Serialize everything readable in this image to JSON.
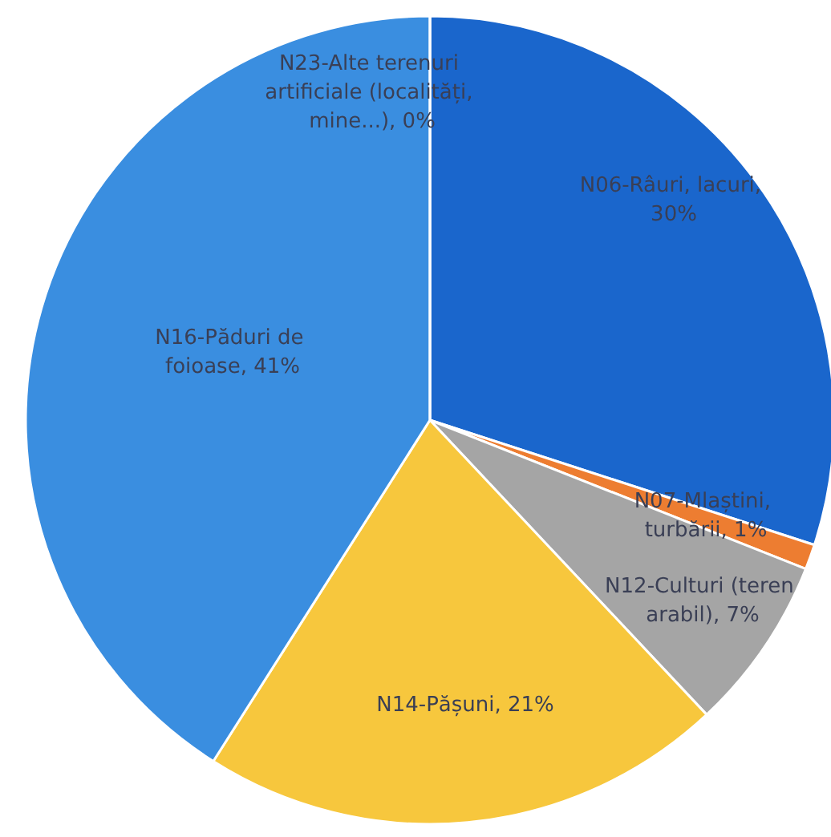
{
  "chart_data": {
    "type": "pie",
    "categories": [
      "N06-Râuri, lacuri, 30%",
      "N07-Mlaștini, turbării, 1%",
      "N12-Culturi (teren arabil), 7%",
      "N14-Pășuni, 21%",
      "N16-Păduri de foioase, 41%",
      "N23-Alte terenuri artificiale (localități, mine...), 0%"
    ],
    "values": [
      30,
      1,
      7,
      21,
      41,
      0
    ],
    "colors": [
      "#1a66cc",
      "#ed7d31",
      "#a5a5a5",
      "#f7c73d",
      "#3a8ee0",
      "#4a9be6"
    ],
    "legend": false
  }
}
